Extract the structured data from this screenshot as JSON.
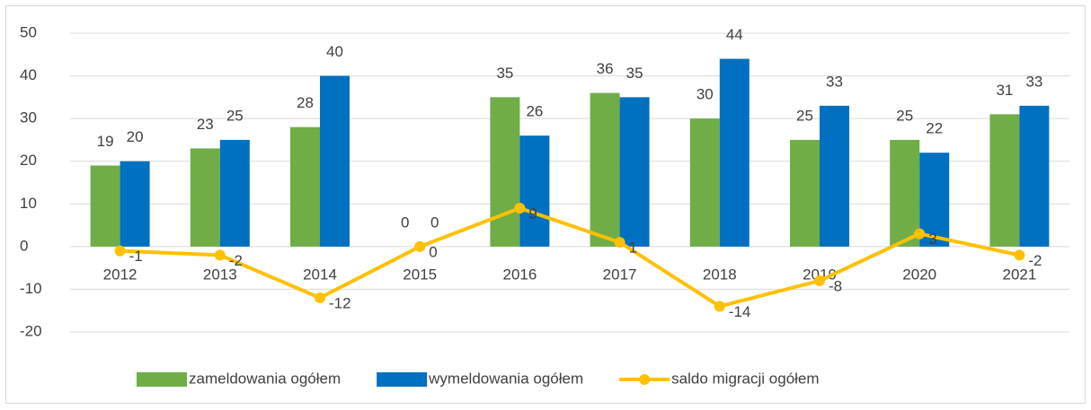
{
  "chart_data": {
    "type": "bar_line",
    "categories": [
      "2012",
      "2013",
      "2014",
      "2015",
      "2016",
      "2017",
      "2018",
      "2019",
      "2020",
      "2021"
    ],
    "series": [
      {
        "name": "zameldowania ogółem",
        "color": "#70ad47",
        "type": "bar",
        "values": [
          19,
          23,
          28,
          0,
          35,
          36,
          30,
          25,
          25,
          31
        ]
      },
      {
        "name": "wymeldowania ogółem",
        "color": "#0070c0",
        "type": "bar",
        "values": [
          20,
          25,
          40,
          0,
          26,
          35,
          44,
          33,
          22,
          33
        ]
      },
      {
        "name": "saldo migracji ogółem",
        "color": "#ffc000",
        "type": "line",
        "values": [
          -1,
          -2,
          -12,
          0,
          9,
          1,
          -14,
          -8,
          3,
          -2
        ]
      }
    ],
    "ylim": [
      -20,
      50
    ],
    "yticks": [
      -20,
      -10,
      0,
      10,
      20,
      30,
      40,
      50
    ],
    "grid": true,
    "legend": "bottom"
  }
}
